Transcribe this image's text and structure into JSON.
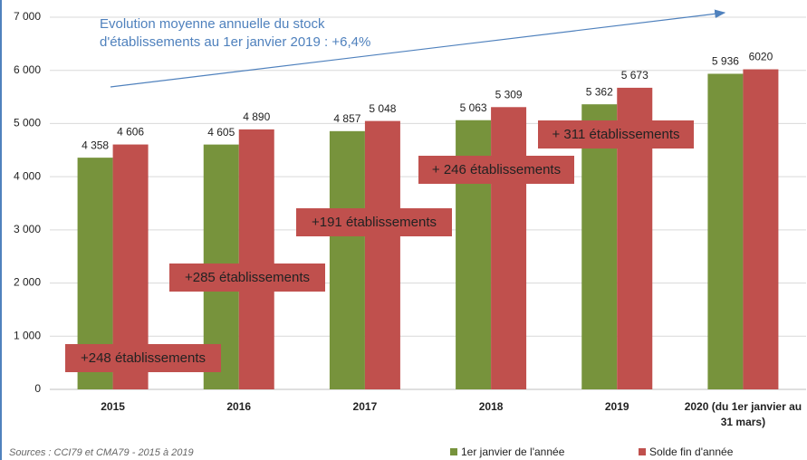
{
  "chart_data": {
    "type": "bar",
    "categories": [
      "2015",
      "2016",
      "2017",
      "2018",
      "2019",
      "2020 (du 1er janvier au 31 mars)"
    ],
    "series": [
      {
        "name": "1er janvier de l'année",
        "color": "#77933c",
        "values": [
          4358,
          4605,
          4857,
          5063,
          5362,
          5936
        ],
        "value_labels": [
          "4 358",
          "4 605",
          "4 857",
          "5 063",
          "5 362",
          "5 936"
        ]
      },
      {
        "name": "Solde fin d'année",
        "color": "#c0504d",
        "values": [
          4606,
          4890,
          5048,
          5309,
          5673,
          6020
        ],
        "value_labels": [
          "4 606",
          "4 890",
          "5 048",
          "5 309",
          "5 673",
          "6020"
        ]
      }
    ],
    "ylim": [
      0,
      7000
    ],
    "yticks": [
      {
        "value": 0,
        "label": "0"
      },
      {
        "value": 1000,
        "label": "1 000"
      },
      {
        "value": 2000,
        "label": "2 000"
      },
      {
        "value": 3000,
        "label": "3 000"
      },
      {
        "value": 4000,
        "label": "4 000"
      },
      {
        "value": 5000,
        "label": "5 000"
      },
      {
        "value": 6000,
        "label": "6 000"
      },
      {
        "value": 7000,
        "label": "7 000"
      }
    ],
    "grid": true,
    "legend": "bottom",
    "annotations": [
      "+248 établissements",
      "+285 établissements",
      "+191 établissements",
      "+ 246 établissements",
      "+ 311 établissements"
    ],
    "trend_note": [
      "Evolution moyenne annuelle du stock",
      "d'établissements au 1er janvier 2019 : +6,4%"
    ],
    "source": "Sources : CCI79 et CMA79 - 2015 à 2019"
  }
}
